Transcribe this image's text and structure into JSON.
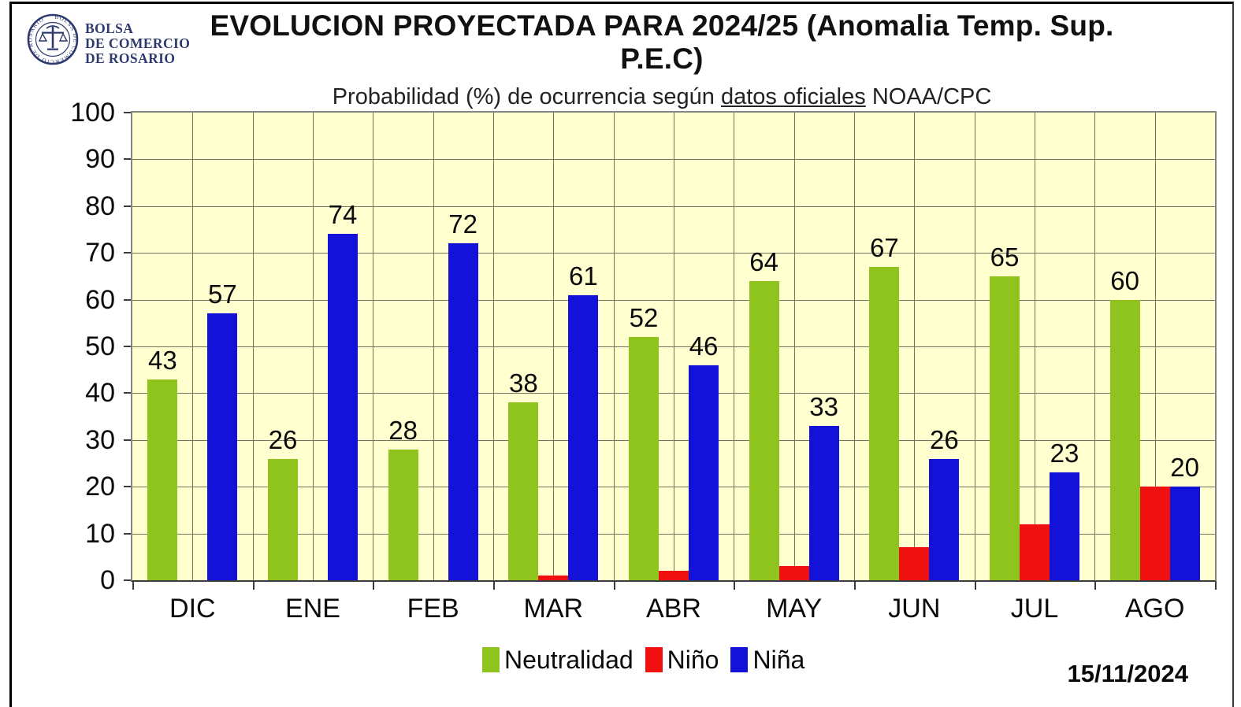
{
  "branding": {
    "org_name_lines": [
      "BOLSA",
      "DE COMERCIO",
      "DE ROSARIO"
    ],
    "seal_text": "BOLSA DE COMERCIO DE ROSARIO"
  },
  "header": {
    "title": "EVOLUCION PROYECTADA PARA 2024/25 (Anomalia Temp. Sup. P.E.C)",
    "subtitle_prefix": "Probabilidad (%) de ocurrencia según ",
    "subtitle_underline": "datos oficiales",
    "subtitle_suffix": " NOAA/CPC"
  },
  "chart_data": {
    "type": "bar",
    "title": "EVOLUCION PROYECTADA PARA 2024/25 (Anomalia Temp. Sup. P.E.C)",
    "subtitle": "Probabilidad (%) de ocurrencia según datos oficiales NOAA/CPC",
    "categories": [
      "DIC",
      "ENE",
      "FEB",
      "MAR",
      "ABR",
      "MAY",
      "JUN",
      "JUL",
      "AGO"
    ],
    "series": [
      {
        "name": "Neutralidad",
        "color": "#8fc31d",
        "values": [
          43,
          26,
          28,
          38,
          52,
          64,
          67,
          65,
          60
        ],
        "show_labels": true
      },
      {
        "name": "Niño",
        "color": "#f01010",
        "values": [
          0,
          0,
          0,
          1,
          2,
          3,
          7,
          12,
          20
        ],
        "show_labels": false
      },
      {
        "name": "Niña",
        "color": "#1212d9",
        "values": [
          57,
          74,
          72,
          61,
          46,
          33,
          26,
          23,
          20
        ],
        "show_labels": true
      }
    ],
    "ylim": [
      0,
      100
    ],
    "y_tick_step": 10,
    "grid": {
      "horizontal": "every 10",
      "vertical": "every half category"
    },
    "plot_background": "#ffffd0",
    "legend_position": "bottom-center",
    "xlabel": "",
    "ylabel": ""
  },
  "footer": {
    "date": "15/11/2024"
  }
}
